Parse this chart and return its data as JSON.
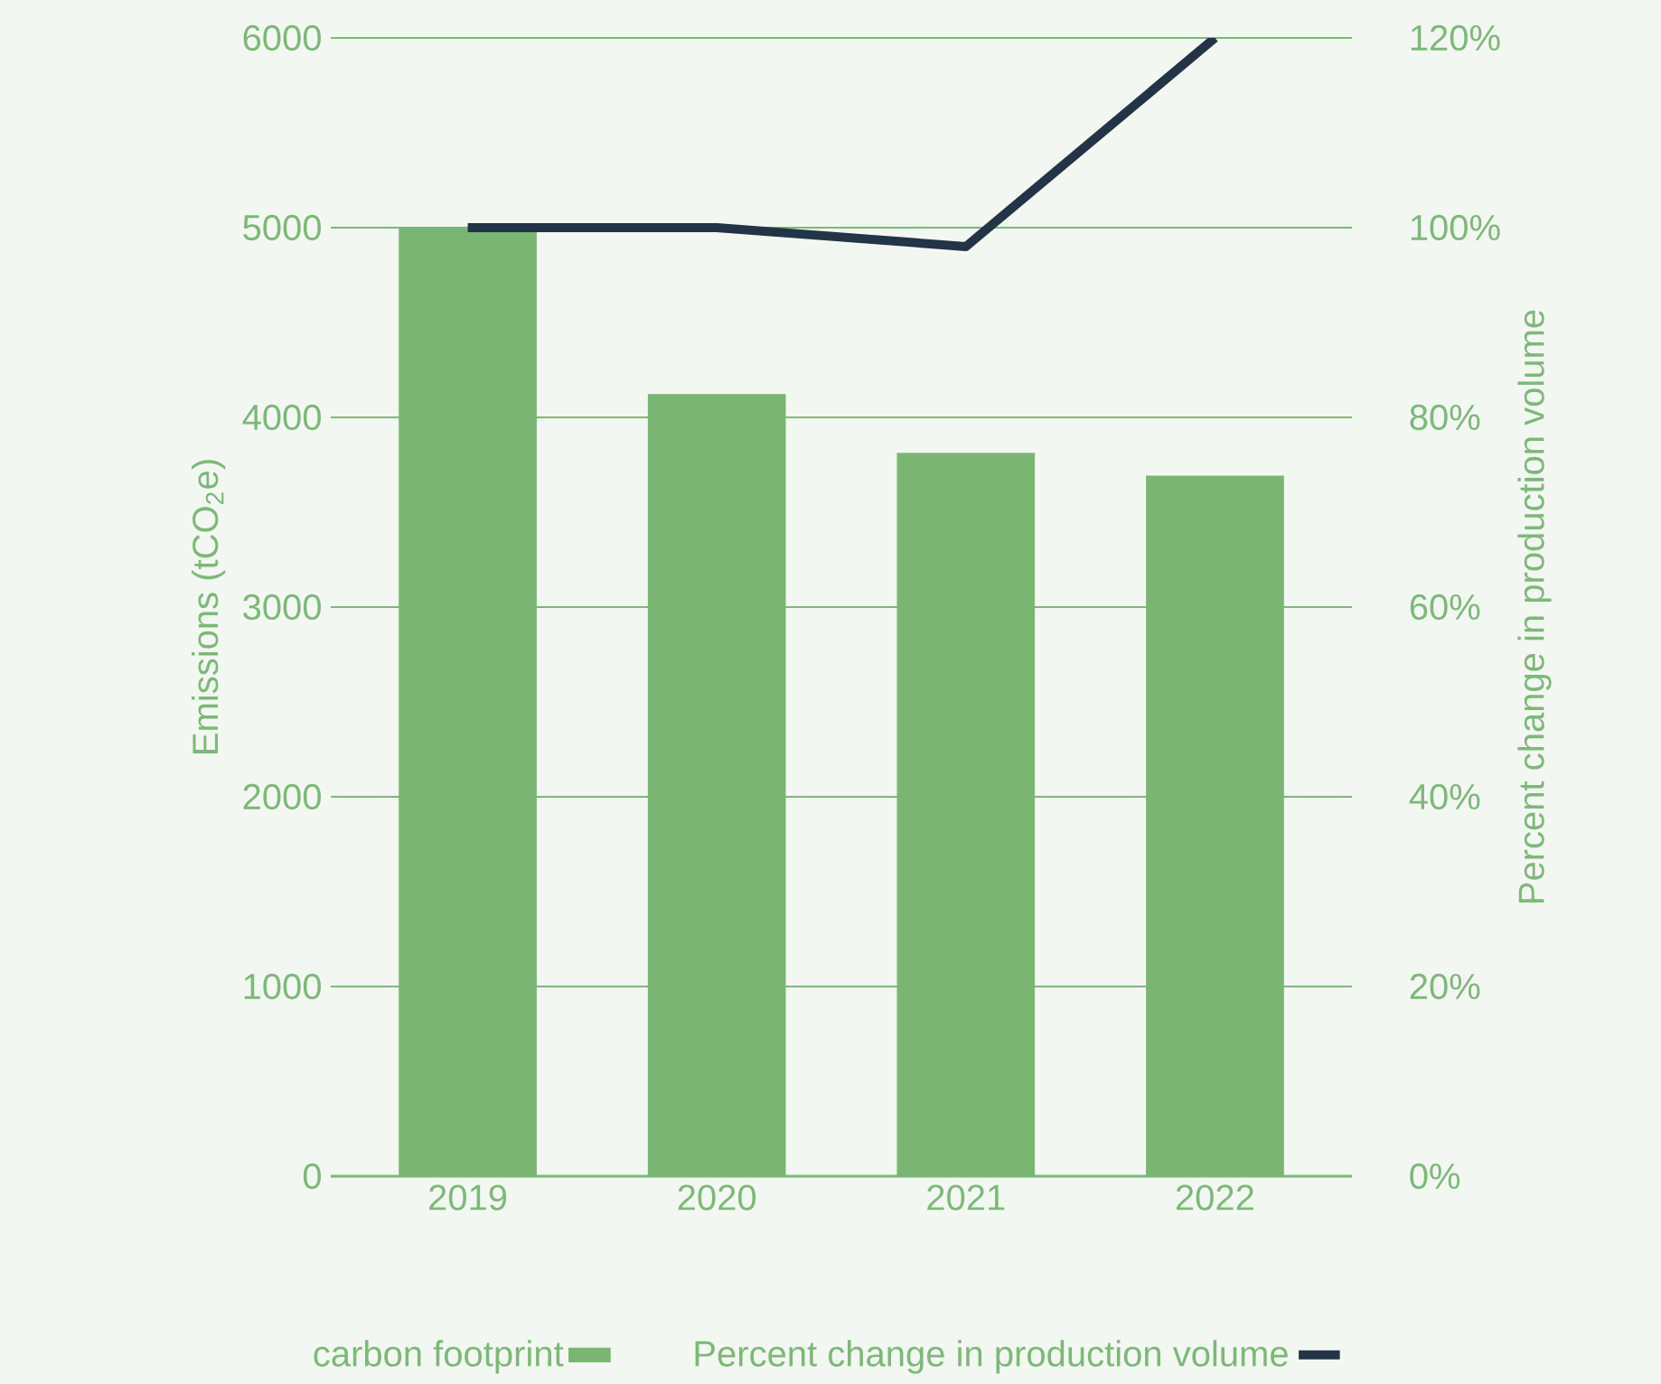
{
  "chart_data": {
    "type": "bar",
    "ylabel": "Emissions (tCO$_{2}$e)",
    "y2label": "Percent change in production volume",
    "categories": [
      "2019",
      "2020",
      "2021",
      "2022"
    ],
    "series": [
      {
        "name": "carbon footprint",
        "color": "#7bb574",
        "values": [
          5000,
          4120,
          3810,
          3690
        ]
      },
      {
        "name": "Percent change in production volume",
        "type": "line",
        "axis": "y2",
        "color": "#233447",
        "values": [
          100,
          100,
          98,
          120
        ]
      }
    ],
    "ylim": [
      0,
      6000
    ],
    "yticks": [
      0,
      1000,
      2000,
      3000,
      4000,
      5000,
      6000
    ],
    "y2lim": [
      0,
      120
    ],
    "y2ticks": [
      {
        "value": 0,
        "label": "0%"
      },
      {
        "value": 20,
        "label": "20%"
      },
      {
        "value": 40,
        "label": "40%"
      },
      {
        "value": 60,
        "label": "60%"
      },
      {
        "value": 80,
        "label": "80%"
      },
      {
        "value": 100,
        "label": "100%"
      },
      {
        "value": 120,
        "label": "120%"
      }
    ],
    "grid": "y",
    "legend": "bottom"
  }
}
